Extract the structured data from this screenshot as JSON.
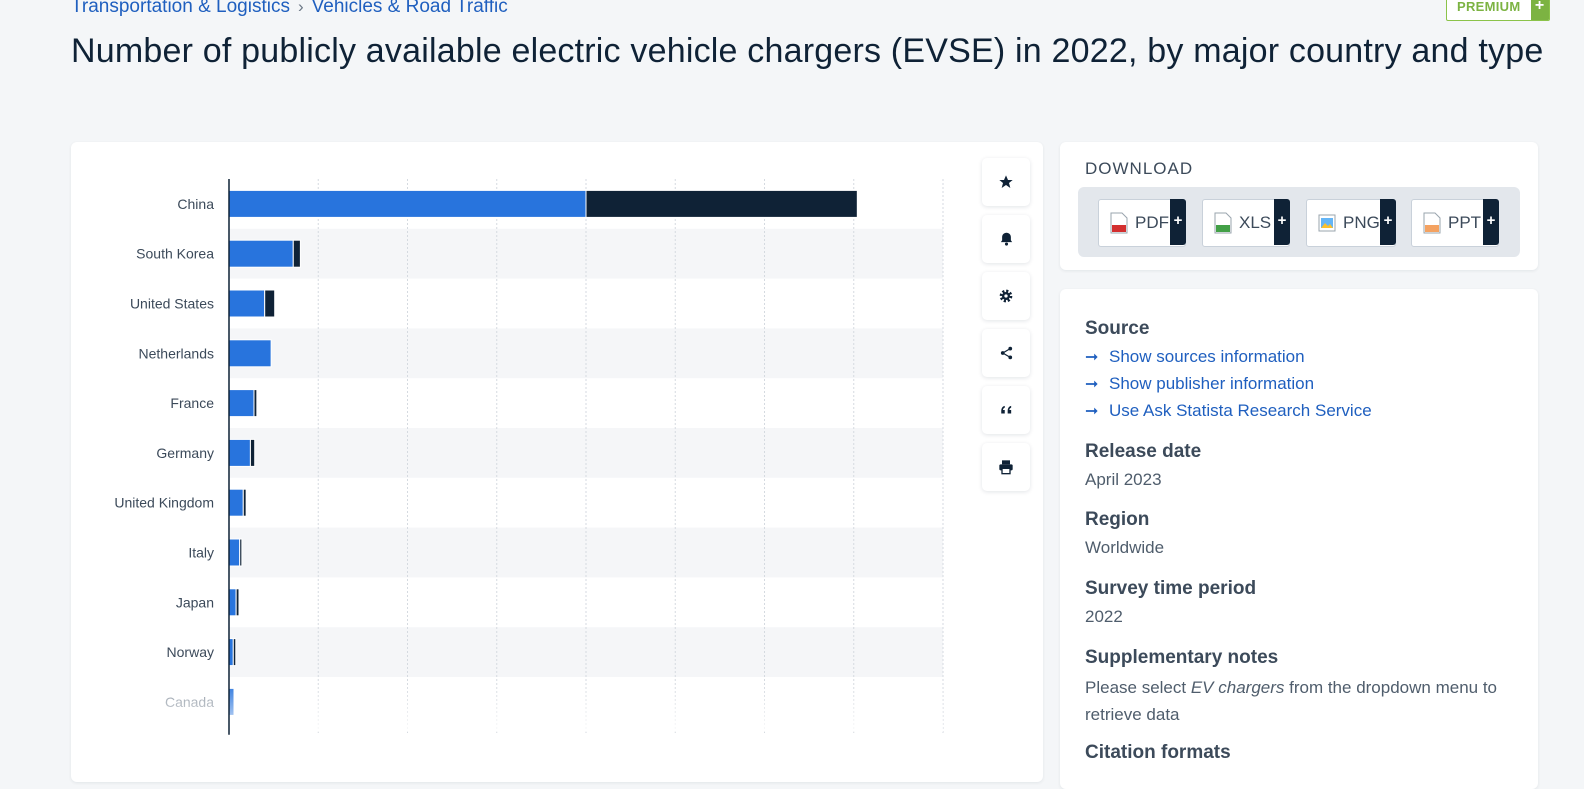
{
  "breadcrumb": {
    "item1": "Transportation & Logistics",
    "separator": "›",
    "item2": "Vehicles & Road Traffic"
  },
  "premium": {
    "label": "PREMIUM",
    "plus": "+"
  },
  "title": "Number of publicly available electric vehicle chargers (EVSE) in 2022, by major country and type",
  "tools": {
    "star": "star-icon",
    "bell": "bell-icon",
    "gear": "gear-icon",
    "share": "share-icon",
    "quote": "quote-icon",
    "print": "print-icon"
  },
  "download": {
    "heading": "DOWNLOAD",
    "buttons": [
      {
        "label": "PDF",
        "plus": "+",
        "icon": "pdf-file-icon"
      },
      {
        "label": "XLS",
        "plus": "+",
        "icon": "xls-file-icon"
      },
      {
        "label": "PNG",
        "plus": "+",
        "icon": "png-file-icon"
      },
      {
        "label": "PPT",
        "plus": "+",
        "icon": "ppt-file-icon"
      }
    ]
  },
  "info": {
    "source_title": "Source",
    "links": [
      "Show sources information",
      "Show publisher information",
      "Use Ask Statista Research Service"
    ],
    "release_title": "Release date",
    "release_value": "April 2023",
    "region_title": "Region",
    "region_value": "Worldwide",
    "survey_title": "Survey time period",
    "survey_value": "2022",
    "notes_title": "Supplementary notes",
    "notes_pre": "Please select ",
    "notes_em": "EV chargers",
    "notes_post": " from the dropdown menu to retrieve data",
    "citation_title": "Citation formats"
  },
  "colors": {
    "slow_series": "#2874dd",
    "fast_series": "#0f2236",
    "link": "#1f5fbf"
  },
  "chart_data": {
    "type": "bar",
    "orientation": "horizontal",
    "stacked": true,
    "categories": [
      "China",
      "South Korea",
      "United States",
      "Netherlands",
      "France",
      "Germany",
      "United Kingdom",
      "Italy",
      "Japan",
      "Norway",
      "Canada"
    ],
    "series": [
      {
        "values": [
          1000000,
          180000,
          100000,
          118000,
          70000,
          60000,
          40000,
          30000,
          20000,
          12000,
          14000
        ]
      },
      {
        "values": [
          760000,
          20000,
          28000,
          0,
          8000,
          12000,
          8000,
          6000,
          8000,
          7000,
          0
        ]
      }
    ],
    "xlim": [
      0,
      2000000
    ],
    "grid": true
  }
}
